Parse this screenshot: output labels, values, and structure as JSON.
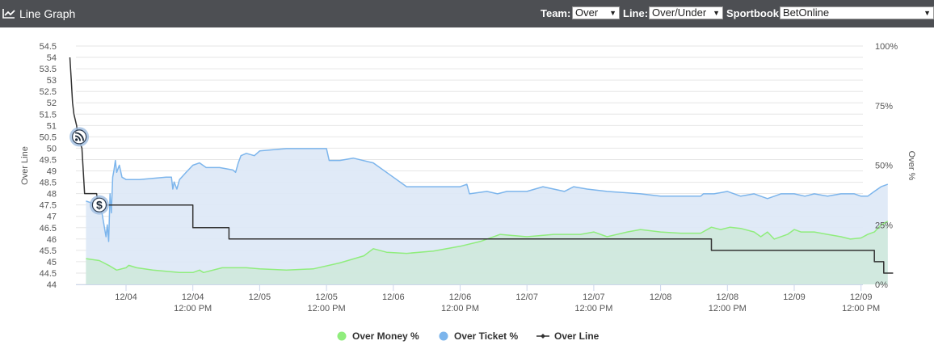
{
  "header": {
    "title": "Line Graph",
    "icon": "line-chart-icon",
    "team_label": "Team:",
    "team_value": "Over",
    "line_label": "Line:",
    "line_value": "Over/Under",
    "sportsbook_label": "Sportbook:",
    "sportsbook_value": "BetOnline"
  },
  "colors": {
    "header_bg": "#4d4f53",
    "money": "#90ed7d",
    "money_fill": "#cfe9dc",
    "ticket": "#7cb5ec",
    "ticket_fill": "#dde8f6",
    "line": "#333333",
    "grid": "#e6e6e6"
  },
  "chart_data": {
    "type": "line",
    "x_ticks": [
      {
        "t": 0.0,
        "d": "12/04",
        "h": ""
      },
      {
        "t": 0.5,
        "d": "12/04",
        "h": "12:00 PM"
      },
      {
        "t": 1.0,
        "d": "12/05",
        "h": ""
      },
      {
        "t": 1.5,
        "d": "12/05",
        "h": "12:00 PM"
      },
      {
        "t": 2.0,
        "d": "12/06",
        "h": ""
      },
      {
        "t": 2.5,
        "d": "12/06",
        "h": "12:00 PM"
      },
      {
        "t": 3.0,
        "d": "12/07",
        "h": ""
      },
      {
        "t": 3.5,
        "d": "12/07",
        "h": "12:00 PM"
      },
      {
        "t": 4.0,
        "d": "12/08",
        "h": ""
      },
      {
        "t": 4.5,
        "d": "12/08",
        "h": "12:00 PM"
      },
      {
        "t": 5.0,
        "d": "12/09",
        "h": ""
      },
      {
        "t": 5.5,
        "d": "12/09",
        "h": "12:00 PM"
      }
    ],
    "ylabel_left": "Over Line",
    "ylabel_right": "Over %",
    "ylim_left": [
      44,
      54.5
    ],
    "y_ticks_left": [
      "44",
      "44.5",
      "45",
      "45.5",
      "46",
      "46.5",
      "47",
      "47.5",
      "48",
      "48.5",
      "49",
      "49.5",
      "50",
      "50.5",
      "51",
      "51.5",
      "52",
      "52.5",
      "53",
      "53.5",
      "54",
      "54.5"
    ],
    "ylim_right": [
      0,
      100
    ],
    "y_ticks_right": [
      "0%",
      "25%",
      "50%",
      "75%",
      "100%"
    ],
    "grid": true,
    "legend_position": "bottom-center",
    "series": [
      {
        "name": "Over Money %",
        "axis": "right",
        "points": [
          [
            -0.3,
            10.8
          ],
          [
            -0.2,
            10
          ],
          [
            -0.13,
            8
          ],
          [
            -0.07,
            6
          ],
          [
            0,
            7
          ],
          [
            0.02,
            8
          ],
          [
            0.08,
            7
          ],
          [
            0.2,
            6
          ],
          [
            0.4,
            5
          ],
          [
            0.5,
            5
          ],
          [
            0.55,
            6
          ],
          [
            0.58,
            5
          ],
          [
            0.72,
            7
          ],
          [
            0.9,
            7
          ],
          [
            1.0,
            6.5
          ],
          [
            1.2,
            6
          ],
          [
            1.4,
            6.5
          ],
          [
            1.6,
            9
          ],
          [
            1.78,
            12
          ],
          [
            1.85,
            15
          ],
          [
            1.95,
            13.5
          ],
          [
            2.1,
            13
          ],
          [
            2.3,
            14
          ],
          [
            2.5,
            16
          ],
          [
            2.65,
            18
          ],
          [
            2.8,
            21
          ],
          [
            3.0,
            20
          ],
          [
            3.2,
            21
          ],
          [
            3.4,
            21
          ],
          [
            3.5,
            22
          ],
          [
            3.6,
            20
          ],
          [
            3.75,
            22
          ],
          [
            3.85,
            23
          ],
          [
            4.0,
            22
          ],
          [
            4.15,
            21.5
          ],
          [
            4.3,
            21.5
          ],
          [
            4.38,
            24
          ],
          [
            4.45,
            23
          ],
          [
            4.52,
            24
          ],
          [
            4.6,
            23.5
          ],
          [
            4.7,
            22
          ],
          [
            4.75,
            20
          ],
          [
            4.8,
            22
          ],
          [
            4.85,
            19
          ],
          [
            4.95,
            21
          ],
          [
            5.0,
            23
          ],
          [
            5.05,
            22
          ],
          [
            5.15,
            22
          ],
          [
            5.25,
            21
          ],
          [
            5.35,
            20
          ],
          [
            5.42,
            19
          ],
          [
            5.5,
            19.5
          ],
          [
            5.55,
            21
          ],
          [
            5.6,
            22
          ],
          [
            5.65,
            25
          ],
          [
            5.7,
            26.5
          ]
        ]
      },
      {
        "name": "Over Ticket %",
        "axis": "right",
        "points": [
          [
            -0.3,
            35
          ],
          [
            -0.25,
            34
          ],
          [
            -0.22,
            33
          ],
          [
            -0.18,
            30
          ],
          [
            -0.15,
            20
          ],
          [
            -0.14,
            25
          ],
          [
            -0.13,
            18
          ],
          [
            -0.12,
            38
          ],
          [
            -0.11,
            30
          ],
          [
            -0.1,
            45
          ],
          [
            -0.09,
            48
          ],
          [
            -0.08,
            52
          ],
          [
            -0.07,
            47
          ],
          [
            -0.05,
            50
          ],
          [
            -0.03,
            45
          ],
          [
            0,
            44
          ],
          [
            0.1,
            44
          ],
          [
            0.3,
            45
          ],
          [
            0.34,
            45
          ],
          [
            0.35,
            40
          ],
          [
            0.36,
            43
          ],
          [
            0.38,
            40
          ],
          [
            0.4,
            44
          ],
          [
            0.45,
            47
          ],
          [
            0.5,
            50
          ],
          [
            0.55,
            51
          ],
          [
            0.6,
            49
          ],
          [
            0.7,
            49
          ],
          [
            0.8,
            48
          ],
          [
            0.82,
            47
          ],
          [
            0.84,
            51
          ],
          [
            0.86,
            54
          ],
          [
            0.9,
            55
          ],
          [
            0.96,
            54
          ],
          [
            1.0,
            56
          ],
          [
            1.2,
            57
          ],
          [
            1.4,
            57
          ],
          [
            1.5,
            57
          ],
          [
            1.52,
            52
          ],
          [
            1.6,
            52
          ],
          [
            1.7,
            53
          ],
          [
            1.85,
            51
          ],
          [
            2.0,
            45
          ],
          [
            2.1,
            41
          ],
          [
            2.3,
            41
          ],
          [
            2.5,
            41
          ],
          [
            2.55,
            42
          ],
          [
            2.57,
            38
          ],
          [
            2.7,
            39
          ],
          [
            2.78,
            38
          ],
          [
            2.85,
            39
          ],
          [
            3.0,
            39
          ],
          [
            3.12,
            41
          ],
          [
            3.2,
            40
          ],
          [
            3.28,
            39
          ],
          [
            3.35,
            41
          ],
          [
            3.45,
            40
          ],
          [
            3.6,
            39
          ],
          [
            3.85,
            38
          ],
          [
            4.0,
            37
          ],
          [
            4.1,
            37
          ],
          [
            4.2,
            37
          ],
          [
            4.3,
            37
          ],
          [
            4.32,
            38
          ],
          [
            4.4,
            38
          ],
          [
            4.5,
            39
          ],
          [
            4.6,
            37
          ],
          [
            4.7,
            38
          ],
          [
            4.8,
            36
          ],
          [
            4.9,
            38
          ],
          [
            5.0,
            38
          ],
          [
            5.08,
            37
          ],
          [
            5.15,
            38
          ],
          [
            5.25,
            37
          ],
          [
            5.35,
            38
          ],
          [
            5.45,
            38
          ],
          [
            5.5,
            37
          ],
          [
            5.55,
            37
          ],
          [
            5.6,
            39
          ],
          [
            5.65,
            41
          ],
          [
            5.7,
            42
          ]
        ]
      },
      {
        "name": "Over Line",
        "axis": "left",
        "points": [
          [
            -0.42,
            54
          ],
          [
            -0.41,
            53
          ],
          [
            -0.4,
            52
          ],
          [
            -0.39,
            51.5
          ],
          [
            -0.37,
            51
          ],
          [
            -0.36,
            50.5
          ],
          [
            -0.33,
            50
          ],
          [
            -0.31,
            48
          ],
          [
            -0.22,
            48
          ],
          [
            -0.21,
            47.5
          ],
          [
            0.5,
            47.5
          ],
          [
            0.5,
            46.5
          ],
          [
            0.77,
            46.5
          ],
          [
            0.77,
            46
          ],
          [
            1.6,
            46
          ],
          [
            2.0,
            46
          ],
          [
            3.0,
            46
          ],
          [
            4.0,
            46
          ],
          [
            4.38,
            46
          ],
          [
            4.38,
            45.5
          ],
          [
            5.0,
            45.5
          ],
          [
            5.6,
            45.5
          ],
          [
            5.6,
            45
          ],
          [
            5.67,
            45
          ],
          [
            5.67,
            44.5
          ],
          [
            5.74,
            44.5
          ]
        ]
      }
    ],
    "markers": [
      {
        "name": "news-marker-icon",
        "symbol": "news",
        "t": -0.35,
        "y": 50.5
      },
      {
        "name": "money-marker-icon",
        "symbol": "$",
        "t": -0.2,
        "y": 47.5
      }
    ]
  }
}
